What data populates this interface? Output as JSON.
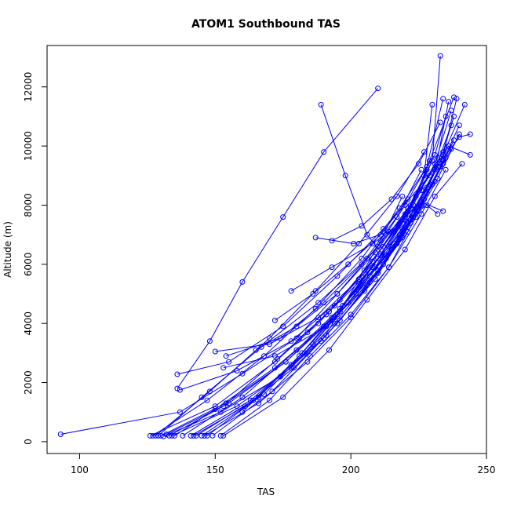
{
  "chart_data": {
    "type": "line",
    "title": "ATOM1 Southbound TAS",
    "xlabel": "TAS",
    "ylabel": "Altitude (m)",
    "xlim": [
      88,
      250
    ],
    "ylim": [
      -400,
      13400
    ],
    "xticks": [
      100,
      150,
      200,
      250
    ],
    "yticks": [
      0,
      2000,
      4000,
      6000,
      8000,
      10000,
      12000
    ],
    "grid": false,
    "legend": "none",
    "color": "#0000ff",
    "markers": "open-circle",
    "series": [
      {
        "x": [
          93,
          137,
          160,
          180,
          195,
          210,
          220,
          228,
          234
        ],
        "y": [
          250,
          1000,
          2300,
          3500,
          5000,
          6600,
          8000,
          9300,
          11600
        ]
      },
      {
        "x": [
          126,
          150,
          172,
          188,
          205,
          222,
          234,
          242
        ],
        "y": [
          200,
          1200,
          2700,
          4000,
          5700,
          8000,
          9700,
          11400
        ]
      },
      {
        "x": [
          136,
          155,
          175,
          195,
          212,
          229,
          240,
          244
        ],
        "y": [
          2280,
          2700,
          3900,
          5600,
          7200,
          9000,
          10300,
          10400
        ]
      },
      {
        "x": [
          127,
          147,
          168,
          187,
          204,
          218,
          231,
          235
        ],
        "y": [
          200,
          1400,
          2900,
          4500,
          6200,
          7900,
          9700,
          11000
        ]
      },
      {
        "x": [
          131,
          152,
          174,
          191,
          209,
          222,
          233,
          239
        ],
        "y": [
          180,
          1000,
          2200,
          3600,
          5500,
          7400,
          9300,
          11600
        ]
      },
      {
        "x": [
          137,
          158,
          178,
          196,
          212,
          224,
          234,
          238
        ],
        "y": [
          1750,
          2400,
          3400,
          4800,
          6600,
          8300,
          9800,
          11000
        ]
      },
      {
        "x": [
          129,
          145,
          167,
          188,
          206,
          220,
          230,
          233
        ],
        "y": [
          200,
          1500,
          3200,
          4700,
          6200,
          7700,
          9500,
          13050
        ]
      },
      {
        "x": [
          141,
          163,
          183,
          199,
          215,
          227,
          236
        ],
        "y": [
          200,
          1400,
          3000,
          4700,
          6500,
          8500,
          10000
        ]
      },
      {
        "x": [
          133,
          153,
          173,
          192,
          208,
          221,
          231,
          237
        ],
        "y": [
          200,
          1200,
          2800,
          4400,
          6100,
          7800,
          9400,
          11200
        ]
      },
      {
        "x": [
          145,
          168,
          186,
          202,
          216,
          228,
          237
        ],
        "y": [
          200,
          1600,
          3300,
          5000,
          6700,
          8400,
          9900
        ]
      },
      {
        "x": [
          135,
          150,
          172,
          190,
          207,
          219,
          227,
          230
        ],
        "y": [
          200,
          1100,
          2500,
          3900,
          5600,
          7200,
          9000,
          11400
        ]
      },
      {
        "x": [
          152,
          170,
          185,
          200,
          214,
          224,
          233,
          240
        ],
        "y": [
          200,
          1400,
          2900,
          4300,
          5900,
          7600,
          9300,
          10700
        ]
      },
      {
        "x": [
          138,
          160,
          180,
          197,
          211,
          223,
          232,
          236
        ],
        "y": [
          200,
          1500,
          3100,
          4600,
          6300,
          8000,
          9600,
          11500
        ]
      },
      {
        "x": [
          149,
          171,
          189,
          205,
          219,
          230,
          238
        ],
        "y": [
          200,
          1700,
          3400,
          5100,
          6900,
          8700,
          10200
        ]
      },
      {
        "x": [
          130,
          154,
          176,
          193,
          209,
          221,
          230
        ],
        "y": [
          200,
          1300,
          2700,
          4200,
          5900,
          7700,
          9500
        ]
      },
      {
        "x": [
          143,
          164,
          181,
          197,
          213,
          226,
          234
        ],
        "y": [
          200,
          1400,
          2900,
          4600,
          6300,
          8000,
          9500
        ]
      },
      {
        "x": [
          153,
          175,
          192,
          206,
          220,
          231,
          241
        ],
        "y": [
          200,
          1500,
          3100,
          4800,
          6500,
          8300,
          9400
        ]
      },
      {
        "x": [
          134,
          158,
          178,
          194,
          210,
          223,
          232
        ],
        "y": [
          200,
          1200,
          2500,
          4000,
          5800,
          7600,
          9300
        ]
      },
      {
        "x": [
          147,
          166,
          182,
          196,
          210,
          222,
          229,
          238
        ],
        "y": [
          200,
          1500,
          3000,
          4500,
          6200,
          7900,
          9500,
          11650
        ]
      },
      {
        "x": [
          128,
          148,
          170,
          187,
          203,
          217,
          227
        ],
        "y": [
          200,
          1700,
          3500,
          5100,
          6700,
          8300,
          9800
        ]
      },
      {
        "x": [
          150,
          170,
          188,
          203,
          218,
          228,
          236,
          244
        ],
        "y": [
          3050,
          3300,
          4200,
          5500,
          7000,
          8600,
          10000,
          9700
        ]
      },
      {
        "x": [
          153,
          172,
          191,
          207,
          221,
          232,
          240
        ],
        "y": [
          2500,
          2900,
          3900,
          5400,
          7100,
          8900,
          10400
        ]
      },
      {
        "x": [
          154,
          174,
          190,
          204,
          217,
          226
        ],
        "y": [
          2900,
          3500,
          4700,
          6000,
          7600,
          9200
        ]
      },
      {
        "x": [
          132,
          155,
          176,
          195,
          212,
          225,
          234
        ],
        "y": [
          250,
          1300,
          2700,
          4300,
          6000,
          7800,
          9400
        ]
      },
      {
        "x": [
          146,
          166,
          184,
          200,
          214,
          226,
          235
        ],
        "y": [
          200,
          1300,
          2700,
          4200,
          5900,
          7700,
          9200
        ]
      },
      {
        "x": [
          142,
          161,
          179,
          195,
          210,
          222,
          231,
          237
        ],
        "y": [
          200,
          1200,
          2500,
          4000,
          5700,
          7500,
          9200,
          10700
        ]
      },
      {
        "x": [
          189,
          198,
          206,
          213,
          222,
          231
        ],
        "y": [
          11400,
          9000,
          7000,
          6200,
          7500,
          8800
        ]
      },
      {
        "x": [
          210,
          190,
          175,
          160,
          148,
          136
        ],
        "y": [
          11950,
          9800,
          7600,
          5400,
          3400,
          1800
        ]
      },
      {
        "x": [
          187,
          201,
          214,
          226,
          234
        ],
        "y": [
          6900,
          6700,
          7100,
          8100,
          7800
        ]
      },
      {
        "x": [
          178,
          193,
          208,
          219,
          228,
          232
        ],
        "y": [
          5100,
          5900,
          6700,
          7400,
          8000,
          7700
        ]
      },
      {
        "x": [
          172,
          186,
          199,
          211,
          221
        ],
        "y": [
          4100,
          5000,
          6000,
          7000,
          8200
        ]
      },
      {
        "x": [
          181,
          191,
          203,
          214,
          224,
          232
        ],
        "y": [
          3500,
          4300,
          5400,
          6600,
          7900,
          9300
        ]
      },
      {
        "x": [
          193,
          204,
          215,
          225,
          233
        ],
        "y": [
          6800,
          7300,
          8200,
          9400,
          10800
        ]
      },
      {
        "x": [
          190,
          196,
          203,
          211,
          219
        ],
        "y": [
          3500,
          4400,
          5500,
          6800,
          8300
        ]
      },
      {
        "x": [
          160,
          178,
          194,
          208,
          220,
          228
        ],
        "y": [
          1000,
          2600,
          4200,
          5900,
          7600,
          9200
        ]
      },
      {
        "x": [
          165,
          180,
          195,
          209,
          221
        ],
        "y": [
          3100,
          3900,
          5000,
          6400,
          7900
        ]
      },
      {
        "x": [
          184,
          194,
          205,
          216,
          226
        ],
        "y": [
          3700,
          4600,
          5800,
          7100,
          8500
        ]
      },
      {
        "x": [
          196,
          206,
          217,
          227,
          235
        ],
        "y": [
          4100,
          5300,
          6700,
          8200,
          9600
        ]
      }
    ]
  }
}
